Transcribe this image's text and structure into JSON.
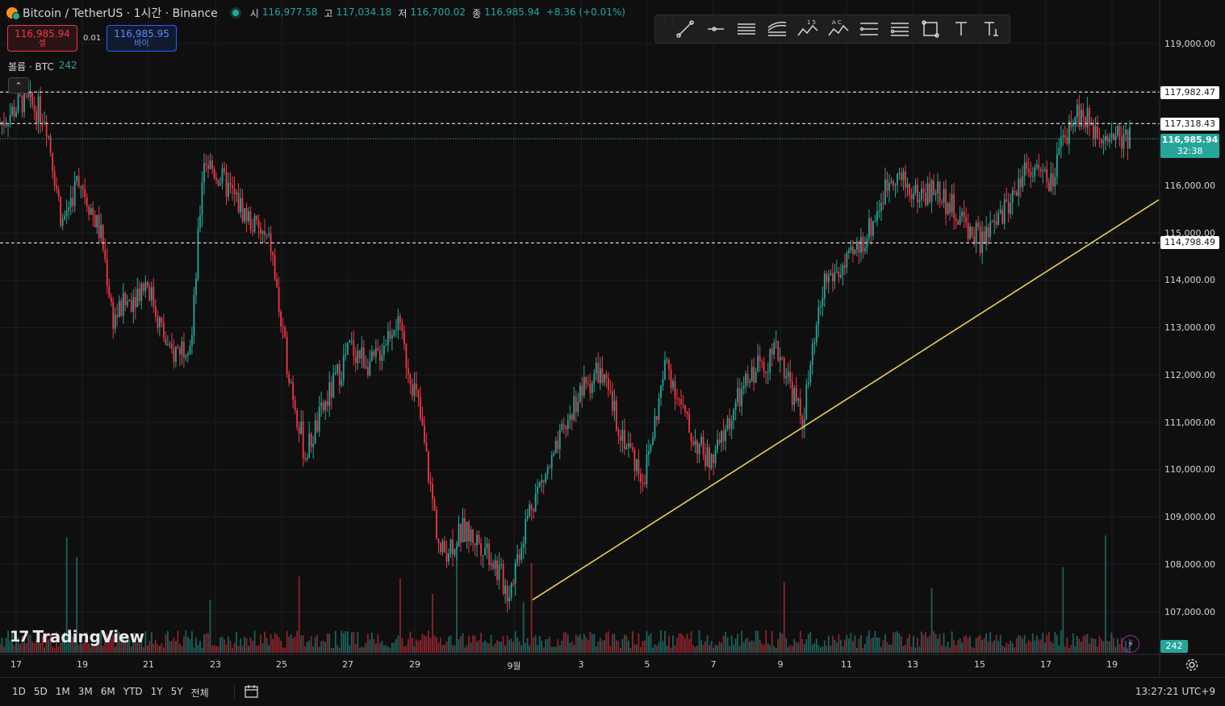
{
  "header": {
    "symbol": "Bitcoin / TetherUS · 1시간 · Binance",
    "ohlc": [
      {
        "key": "시",
        "value": "116,977.58"
      },
      {
        "key": "고",
        "value": "117,034.18"
      },
      {
        "key": "저",
        "value": "116,700.02"
      },
      {
        "key": "종",
        "value": "116,985.94"
      }
    ],
    "change": "+8.36 (+0.01%)"
  },
  "trade": {
    "sell_price": "116,985.94",
    "sell_label": "셀",
    "spread": "0.01",
    "buy_price": "116,985.95",
    "buy_label": "바이"
  },
  "volume_legend": {
    "label": "볼륨 · BTC",
    "value": "242"
  },
  "toolbar": {
    "tools": [
      "trend-line-icon",
      "horizontal-ray-icon",
      "parallel-channel-icon",
      "regression-icon",
      "elliott-wave-icon",
      "abcd-pattern-icon",
      "fib-retracement-icon",
      "fib-extension-icon",
      "rectangle-icon",
      "text-icon",
      "anchored-text-icon"
    ],
    "labels": {
      "elliott": "1 5",
      "abcd": "A C"
    }
  },
  "price_axis": {
    "labels": [
      "119,000.00",
      "116,000.00",
      "115,000.00",
      "114,000.00",
      "113,000.00",
      "112,000.00",
      "111,000.00",
      "110,000.00",
      "109,000.00",
      "108,000.00",
      "107,000.00"
    ]
  },
  "levels": [
    {
      "price": "117,982.47"
    },
    {
      "price": "117,318.43"
    },
    {
      "price": "114,798.49"
    }
  ],
  "current": {
    "price": "116,985.94",
    "countdown": "32:38"
  },
  "volume_tag": "242",
  "dates": [
    "17",
    "19",
    "21",
    "23",
    "25",
    "27",
    "29",
    "9월",
    "3",
    "5",
    "7",
    "9",
    "11",
    "13",
    "15",
    "17",
    "19"
  ],
  "logo": "TradingView",
  "range_buttons": [
    "1D",
    "5D",
    "1M",
    "3M",
    "6M",
    "YTD",
    "1Y",
    "5Y",
    "전체"
  ],
  "clock": "13:27:21 UTC+9",
  "colors": {
    "up": "#26a69a",
    "down": "#f23645",
    "trendline": "#e8d44d",
    "bg": "#0f0f0f"
  },
  "chart_data": {
    "type": "candlestick",
    "interval": "1h",
    "x_start": "17",
    "x_end": "19",
    "ylim": [
      106500,
      119500
    ],
    "closes_keypoints": [
      [
        0,
        117300
      ],
      [
        0.02,
        117800
      ],
      [
        0.04,
        117500
      ],
      [
        0.055,
        115200
      ],
      [
        0.07,
        116200
      ],
      [
        0.09,
        114900
      ],
      [
        0.1,
        113200
      ],
      [
        0.13,
        114000
      ],
      [
        0.15,
        112400
      ],
      [
        0.17,
        112800
      ],
      [
        0.18,
        116600
      ],
      [
        0.2,
        116000
      ],
      [
        0.22,
        115300
      ],
      [
        0.24,
        114700
      ],
      [
        0.25,
        112800
      ],
      [
        0.27,
        110300
      ],
      [
        0.29,
        111500
      ],
      [
        0.31,
        112600
      ],
      [
        0.33,
        112200
      ],
      [
        0.35,
        113200
      ],
      [
        0.37,
        111400
      ],
      [
        0.39,
        108200
      ],
      [
        0.41,
        108700
      ],
      [
        0.43,
        108400
      ],
      [
        0.45,
        107400
      ],
      [
        0.47,
        109300
      ],
      [
        0.49,
        110200
      ],
      [
        0.51,
        111500
      ],
      [
        0.53,
        112100
      ],
      [
        0.55,
        110800
      ],
      [
        0.57,
        109800
      ],
      [
        0.59,
        112300
      ],
      [
        0.61,
        110800
      ],
      [
        0.63,
        110100
      ],
      [
        0.65,
        111300
      ],
      [
        0.67,
        112200
      ],
      [
        0.69,
        112500
      ],
      [
        0.71,
        111000
      ],
      [
        0.73,
        114000
      ],
      [
        0.75,
        114300
      ],
      [
        0.77,
        115100
      ],
      [
        0.79,
        116300
      ],
      [
        0.81,
        115800
      ],
      [
        0.83,
        115900
      ],
      [
        0.85,
        115300
      ],
      [
        0.87,
        114800
      ],
      [
        0.89,
        115500
      ],
      [
        0.91,
        116500
      ],
      [
        0.93,
        116000
      ],
      [
        0.95,
        117600
      ],
      [
        0.97,
        117200
      ],
      [
        1.0,
        116986
      ]
    ],
    "trendline": {
      "from": [
        0.45,
        107250
      ],
      "to": [
        1.04,
        115700
      ]
    }
  }
}
